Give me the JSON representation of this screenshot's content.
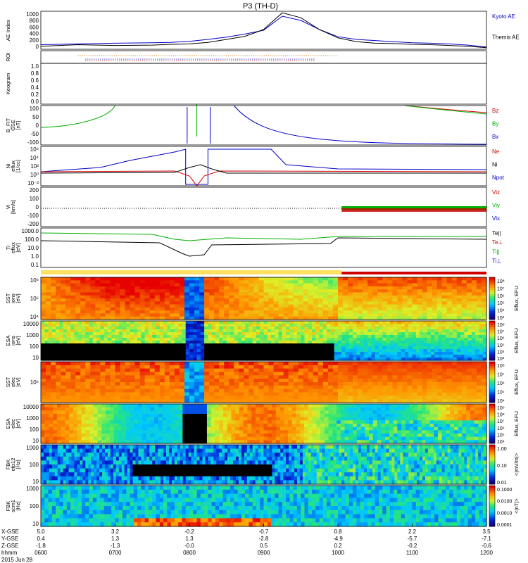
{
  "title": "P3 (TH-D)",
  "date_label": "2015 Jun 28",
  "colors": {
    "kyoto": "#0000c8",
    "themis": "#000000",
    "bz": "#d00000",
    "by": "#00b000",
    "bx": "#0000c8",
    "te": "#00b000"
  },
  "panels": [
    {
      "key": "ae",
      "ylabel": [
        "AE Index"
      ],
      "ticks": [
        "1000",
        "800",
        "600",
        "400",
        "200",
        "0"
      ],
      "legend": [
        {
          "text": "Kyoto AE",
          "color": "#0000c8"
        },
        {
          "text": "Themis AE",
          "color": "#000000"
        }
      ]
    },
    {
      "key": "roi",
      "ylabel": [
        "ROI"
      ],
      "ticks": [],
      "legend": []
    },
    {
      "key": "keo",
      "ylabel": [
        "Keogram"
      ],
      "ticks": [
        "1.0",
        "0.8",
        "0.6",
        "0.4",
        "0.2",
        "0.0"
      ],
      "legend": []
    },
    {
      "key": "bfit",
      "ylabel": [
        "B_FIT",
        "GSE",
        "[nT]"
      ],
      "ticks": [
        "100",
        "50",
        "0",
        "-50",
        "-100"
      ],
      "legend": [
        {
          "text": "Bz",
          "color": "#d00000"
        },
        {
          "text": "By",
          "color": "#00b000"
        },
        {
          "text": "Bx",
          "color": "#0000c8"
        }
      ]
    },
    {
      "key": "ni",
      "ylabel": [
        "Ni",
        "eflux",
        "[1/cc]"
      ],
      "ticks": [
        "10⁶",
        "10⁴",
        "10²",
        "10⁰",
        "10⁻²"
      ],
      "legend": [
        {
          "text": "Ne",
          "color": "#d00000"
        },
        {
          "text": "Ni",
          "color": "#000000"
        },
        {
          "text": "Npot",
          "color": "#0000c8"
        }
      ]
    },
    {
      "key": "vi",
      "ylabel": [
        "Vi",
        "[km/s]"
      ],
      "ticks": [
        "200",
        "100",
        "0",
        "-100",
        "-200"
      ],
      "legend": [
        {
          "text": "Viz",
          "color": "#d00000"
        },
        {
          "text": "Viy",
          "color": "#00b000"
        },
        {
          "text": "Vix",
          "color": "#0000c8"
        }
      ]
    },
    {
      "key": "ti",
      "ylabel": [
        "Ti",
        "eflux",
        "[eV]"
      ],
      "ticks": [
        "1000.0",
        "100.0",
        "10.0",
        "1.0",
        "0.1"
      ],
      "legend": [
        {
          "text": "Te||",
          "color": "#000000"
        },
        {
          "text": "Te⊥",
          "color": "#d00000"
        },
        {
          "text": "Ti||",
          "color": "#00b000"
        },
        {
          "text": "Ti⊥",
          "color": "#0000c8"
        }
      ]
    },
    {
      "key": "sst_i",
      "ylabel": [
        "SST",
        "ions",
        "[eV]"
      ],
      "ticks": [
        "10⁶",
        "10⁵",
        "10⁴"
      ],
      "legend": []
    },
    {
      "key": "esa_i",
      "ylabel": [
        "ESA",
        "ions",
        "[eV]"
      ],
      "ticks": [
        "10000",
        "1000",
        "100",
        "10"
      ],
      "legend": []
    },
    {
      "key": "sst_e",
      "ylabel": [
        "SST",
        "elec",
        "[eV]"
      ],
      "ticks": [
        "10⁵"
      ],
      "legend": []
    },
    {
      "key": "esa_e",
      "ylabel": [
        "ESA",
        "elec",
        "[eV]"
      ],
      "ticks": [
        "10000",
        "1000",
        "100",
        "10"
      ],
      "legend": []
    },
    {
      "key": "fbk_e",
      "ylabel": [
        "FBK",
        "efp12",
        "[Hz]"
      ],
      "ticks": [
        "1000",
        "100",
        "10"
      ],
      "legend": []
    },
    {
      "key": "fbk_b",
      "ylabel": [
        "FBK",
        "scm1",
        "[Hz]"
      ],
      "ticks": [
        "1000",
        "100",
        "10"
      ],
      "legend": []
    }
  ],
  "colorbars": [
    {
      "label": "Eflux, EFU",
      "ticks": [
        "10⁸",
        "10⁷",
        "10⁶",
        "10⁵",
        "10⁴",
        "10³"
      ]
    },
    {
      "label": "Eflux, EFU",
      "ticks": [
        "10⁸",
        "10⁷",
        "10⁶",
        "10⁵",
        "10⁴",
        "10³"
      ]
    },
    {
      "label": "Eflux, EFU",
      "ticks": [
        "10⁸",
        "10⁷",
        "10⁶",
        "10⁵",
        "10⁴"
      ]
    },
    {
      "label": "Eflux, EFU",
      "ticks": [
        "10⁹",
        "10⁸",
        "10⁷",
        "10⁶",
        "10⁵",
        "10⁴"
      ]
    },
    {
      "label": "<|mV/m|>",
      "ticks": [
        "1.00",
        "0.10",
        "0.01"
      ]
    },
    {
      "label": "<|nT|>",
      "ticks": [
        "0.1000",
        "0.0100",
        "0.0010",
        "0.0001"
      ]
    }
  ],
  "x_axis": {
    "row_labels": [
      "X-GSE",
      "Y-GSE",
      "Z-GSE",
      "hhmm"
    ],
    "columns": [
      {
        "x": "5.0",
        "y": "0.4",
        "z": "-1.8",
        "t": "0600"
      },
      {
        "x": "3.2",
        "y": "1.3",
        "z": "-1.3",
        "t": "0700"
      },
      {
        "x": "-0.2",
        "y": "1.3",
        "z": "-0.0",
        "t": "0800"
      },
      {
        "x": "-0.7",
        "y": "-2.8",
        "z": "0.5",
        "t": "0900"
      },
      {
        "x": "0.8",
        "y": "-4.9",
        "z": "0.2",
        "t": "1000"
      },
      {
        "x": "2.2",
        "y": "-5.7",
        "z": "-0.2",
        "t": "1100"
      },
      {
        "x": "3.5",
        "y": "-7.1",
        "z": "-0.6",
        "t": "1200"
      }
    ]
  },
  "chart_data": {
    "type": "line",
    "title": "P3 (TH-D)",
    "x_range": [
      "0600",
      "1200"
    ],
    "series": [
      {
        "name": "Kyoto AE",
        "x": [
          6.0,
          6.5,
          7.0,
          7.5,
          7.75,
          8.0,
          8.25,
          8.5,
          8.75,
          9.0,
          9.25,
          9.5,
          9.75,
          10.0,
          10.25,
          10.5,
          10.75,
          11.0,
          11.25,
          11.5,
          11.75,
          12.0
        ],
        "y": [
          120,
          140,
          160,
          170,
          180,
          210,
          260,
          320,
          400,
          500,
          870,
          760,
          520,
          330,
          260,
          230,
          200,
          170,
          160,
          140,
          110,
          60
        ]
      },
      {
        "name": "Themis AE",
        "x": [
          6.0,
          6.5,
          7.0,
          7.5,
          7.75,
          8.0,
          8.25,
          8.5,
          8.75,
          9.0,
          9.25,
          9.5,
          9.75,
          10.0,
          10.25,
          10.5,
          10.75,
          11.0,
          11.25,
          11.5,
          11.75,
          12.0
        ],
        "y": [
          80,
          120,
          100,
          110,
          130,
          140,
          180,
          260,
          340,
          520,
          960,
          830,
          520,
          300,
          200,
          160,
          150,
          130,
          120,
          100,
          80,
          40
        ]
      }
    ],
    "ylim": [
      0,
      1000
    ]
  }
}
